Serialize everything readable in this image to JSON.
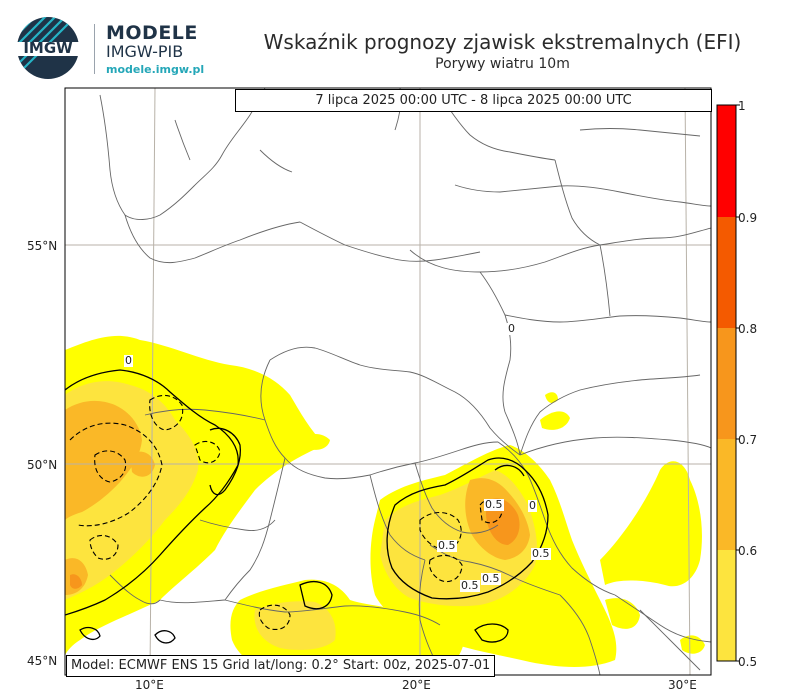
{
  "brand": {
    "logo_text": "IMGW",
    "name": "MODELE",
    "org": "IMGW-PIB",
    "url": "modele.imgw.pl"
  },
  "title": "Wskaźnik prognozy zjawisk ekstremalnych (EFI)",
  "subtitle": "Porywy wiatru 10m",
  "valid_period": "7 lipca 2025 00:00 UTC - 8 lipca 2025 00:00 UTC",
  "model_info": "Model: ECMWF  ENS 15  Grid lat/long: 0.2°  Start: 00z, 2025-07-01",
  "axes": {
    "lat_labels": [
      "55°N",
      "50°N",
      "45°N"
    ],
    "lon_labels": [
      "10°E",
      "20°E",
      "30°E"
    ]
  },
  "colorbar": {
    "ticks": [
      "1",
      "0.9",
      "0.8",
      "0.7",
      "0.6",
      "0.5"
    ],
    "colors": [
      "#ff0000",
      "#f45a00",
      "#f7961c",
      "#fab827",
      "#fde43e",
      "#ffff00"
    ]
  },
  "contour_labels": [
    "0",
    "0",
    "0.5",
    "0.5",
    "0.5",
    "0.5",
    "0.5",
    "0"
  ],
  "colors": {
    "efi_05": "#ffff00",
    "efi_06": "#fde43e",
    "efi_07": "#fab827",
    "efi_08": "#f7961c",
    "grid": "#b8b2a8",
    "border": "#555555"
  }
}
